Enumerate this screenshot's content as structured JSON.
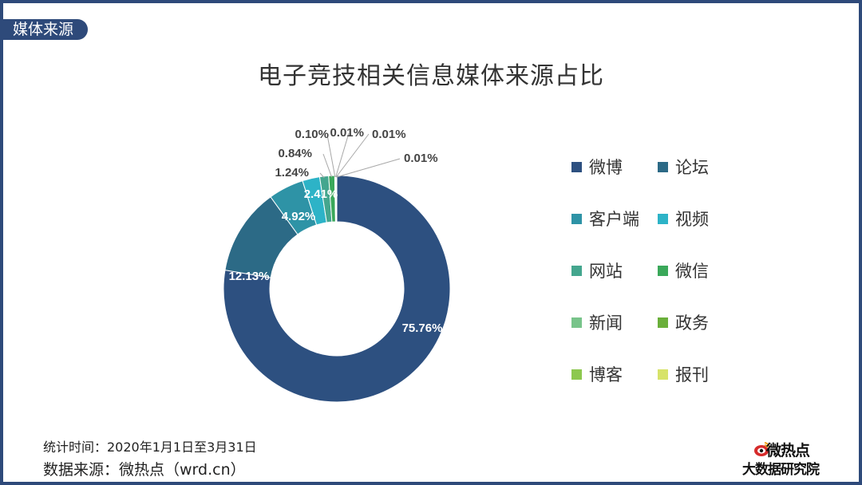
{
  "header": {
    "section_tag": "媒体来源"
  },
  "chart_data": {
    "type": "pie",
    "variant": "donut",
    "title": "电子竞技相关信息媒体来源占比",
    "unit": "%",
    "slices": [
      {
        "label": "微博",
        "value": 75.76,
        "display": "75.76%",
        "color": "#2d5080"
      },
      {
        "label": "论坛",
        "value": 12.13,
        "display": "12.13%",
        "color": "#2c6a86"
      },
      {
        "label": "客户端",
        "value": 4.92,
        "display": "4.92%",
        "color": "#2e93a6"
      },
      {
        "label": "视频",
        "value": 2.41,
        "display": "2.41%",
        "color": "#2db3c7"
      },
      {
        "label": "网站",
        "value": 1.24,
        "display": "1.24%",
        "color": "#44a68e"
      },
      {
        "label": "微信",
        "value": 0.84,
        "display": "0.84%",
        "color": "#3aa85a"
      },
      {
        "label": "新闻",
        "value": 0.1,
        "display": "0.10%",
        "color": "#78c48a"
      },
      {
        "label": "政务",
        "value": 0.01,
        "display": "0.01%",
        "color": "#6aaf3a"
      },
      {
        "label": "博客",
        "value": 0.01,
        "display": "0.01%",
        "color": "#8dc84f"
      },
      {
        "label": "报刊",
        "value": 0.01,
        "display": "0.01%",
        "color": "#d7e36a"
      }
    ],
    "legend_placement": "right"
  },
  "footer": {
    "stat_period": "统计时间：2020年1月1日至3月31日",
    "data_source": "数据来源：微热点（wrd.cn）"
  },
  "logo": {
    "line1": "微热点",
    "line2": "大数据研究院",
    "icon": "weibo-eye-icon"
  }
}
